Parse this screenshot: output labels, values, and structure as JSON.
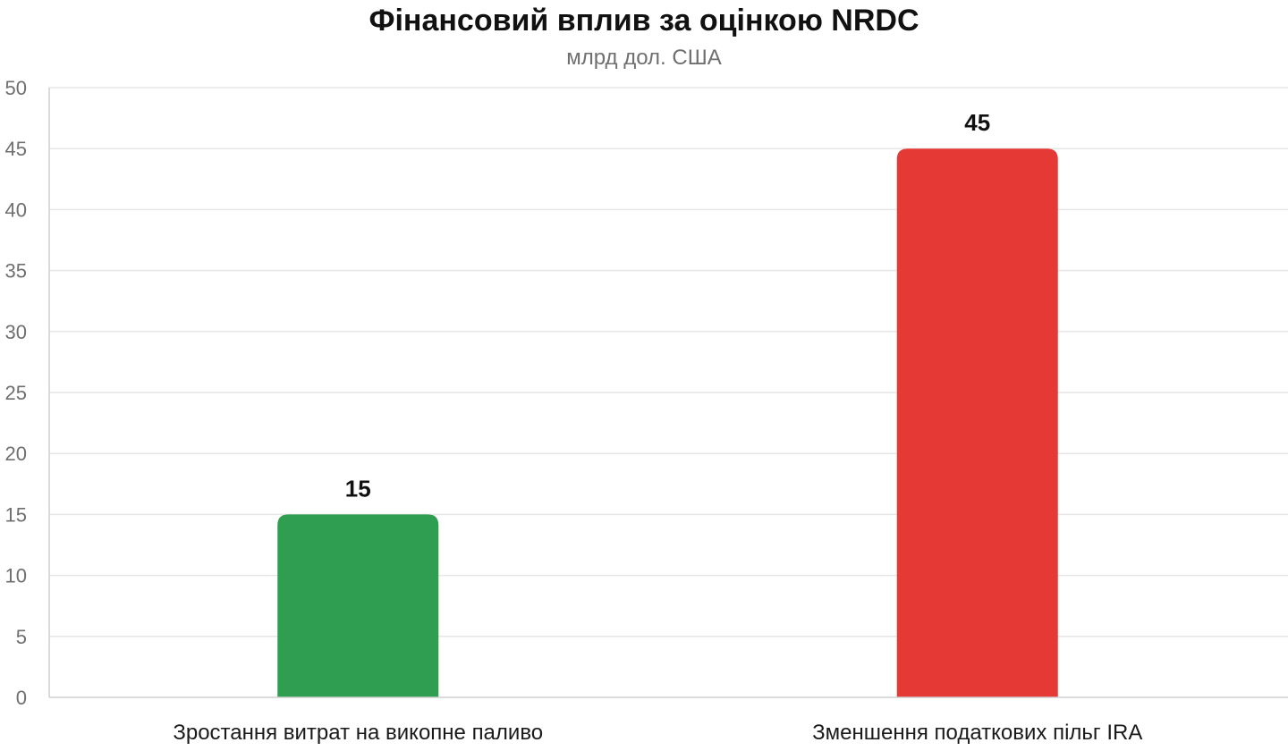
{
  "chart_data": {
    "type": "bar",
    "title": "Фінансовий вплив за оцінкою NRDC",
    "subtitle": "млрд дол. США",
    "xlabel": "",
    "ylabel": "",
    "categories": [
      "Зростання витрат на викопне паливо",
      "Зменшення податкових пільг IRA"
    ],
    "values": [
      15,
      45
    ],
    "bar_colors": [
      "#2f9e50",
      "#e53935"
    ],
    "ylim": [
      0,
      50
    ],
    "yticks": [
      0,
      5,
      10,
      15,
      20,
      25,
      30,
      35,
      40,
      45,
      50
    ],
    "grid": true,
    "legend": "none",
    "data_labels": true
  }
}
